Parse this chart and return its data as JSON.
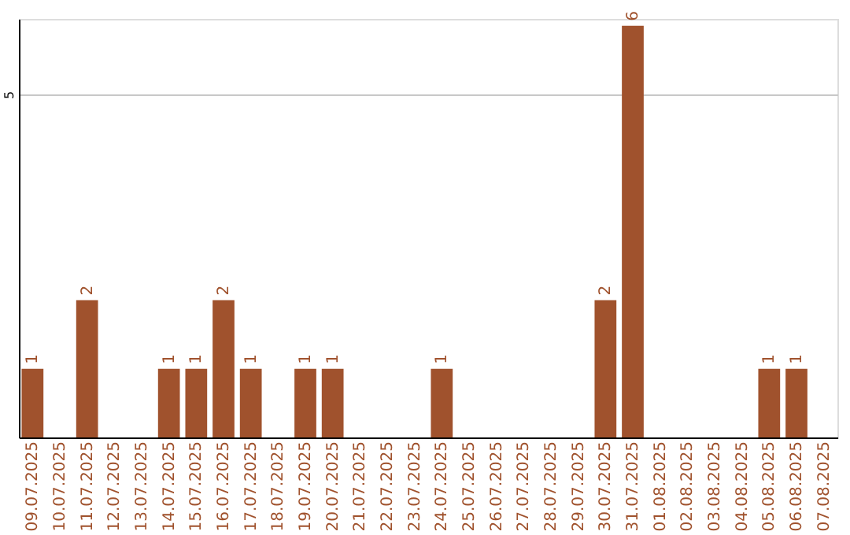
{
  "chart_data": {
    "type": "bar",
    "categories": [
      "09.07.2025",
      "10.07.2025",
      "11.07.2025",
      "12.07.2025",
      "13.07.2025",
      "14.07.2025",
      "15.07.2025",
      "16.07.2025",
      "17.07.2025",
      "18.07.2025",
      "19.07.2025",
      "20.07.2025",
      "21.07.2025",
      "22.07.2025",
      "23.07.2025",
      "24.07.2025",
      "25.07.2025",
      "26.07.2025",
      "27.07.2025",
      "28.07.2025",
      "29.07.2025",
      "30.07.2025",
      "31.07.2025",
      "01.08.2025",
      "02.08.2025",
      "03.08.2025",
      "04.08.2025",
      "05.08.2025",
      "06.08.2025",
      "07.08.2025"
    ],
    "values": [
      1,
      0,
      2,
      0,
      0,
      1,
      1,
      2,
      1,
      0,
      1,
      1,
      0,
      0,
      0,
      1,
      0,
      0,
      0,
      0,
      0,
      2,
      6,
      0,
      0,
      0,
      0,
      1,
      1,
      0
    ],
    "value_labels": [
      "1",
      null,
      "2",
      null,
      null,
      "1",
      "1",
      "2",
      "1",
      null,
      "1",
      "1",
      null,
      null,
      null,
      "1",
      null,
      null,
      null,
      null,
      null,
      "2",
      "6",
      null,
      null,
      null,
      null,
      "1",
      "1",
      null
    ],
    "color": "#a0522d",
    "ylim": [
      0,
      6.1
    ],
    "yticks": [
      5
    ],
    "grid": "y"
  }
}
